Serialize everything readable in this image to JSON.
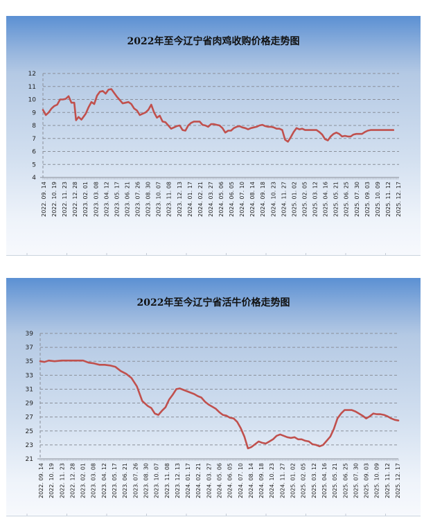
{
  "chart_data": [
    {
      "type": "line",
      "title": "2022年至今辽宁省肉鸡收购价格走势图",
      "xlabel": "",
      "ylabel": "",
      "ylim": [
        4,
        12
      ],
      "yticks": [
        4,
        5,
        6,
        7,
        8,
        9,
        10,
        11,
        12
      ],
      "grid": true,
      "legend": "none",
      "categories": [
        "2022.09.14",
        "2022.10.19",
        "2022.11.23",
        "2022.12.28",
        "2023.02.01",
        "2023.03.08",
        "2023.04.12",
        "2023.05.17",
        "2023.06.21",
        "2023.07.26",
        "2023.08.30",
        "2023.10.07",
        "2023.11.08",
        "2023.12.13",
        "2024.01.17",
        "2024.02.21",
        "2024.03.27",
        "2024.05.06",
        "2024.06.05",
        "2024.07.10",
        "2024.08.14",
        "2024.09.18",
        "2024.10.23",
        "2024.11.27",
        "2025.01.02",
        "2025.02.05",
        "2025.03.12",
        "2025.04.16",
        "2025.05.21",
        "2025.06.25",
        "2025.07.30",
        "2025.09.03",
        "2025.10.09",
        "2025.11.12",
        "2025.12.17"
      ],
      "series": [
        {
          "name": "肉鸡收购价格",
          "color": "#c0504d",
          "x_frac": [
            0,
            0.008,
            0.016,
            0.024,
            0.032,
            0.04,
            0.048,
            0.056,
            0.064,
            0.072,
            0.08,
            0.088,
            0.093,
            0.1,
            0.108,
            0.112,
            0.12,
            0.128,
            0.136,
            0.144,
            0.152,
            0.16,
            0.168,
            0.176,
            0.184,
            0.192,
            0.2,
            0.208,
            0.216,
            0.224,
            0.232,
            0.24,
            0.248,
            0.256,
            0.264,
            0.272,
            0.28,
            0.288,
            0.296,
            0.304,
            0.312,
            0.32,
            0.328,
            0.336,
            0.344,
            0.352,
            0.36,
            0.368,
            0.376,
            0.384,
            0.392,
            0.4,
            0.408,
            0.416,
            0.424,
            0.432,
            0.44,
            0.448,
            0.456,
            0.464,
            0.472,
            0.48,
            0.488,
            0.496,
            0.504,
            0.512,
            0.52,
            0.528,
            0.536,
            0.544,
            0.552,
            0.56,
            0.568,
            0.576,
            0.584,
            0.592,
            0.6,
            0.608,
            0.616,
            0.624,
            0.632,
            0.64,
            0.648,
            0.656,
            0.664,
            0.672,
            0.68,
            0.688,
            0.696,
            0.704,
            0.712,
            0.72,
            0.728,
            0.736,
            0.744,
            0.752,
            0.76,
            0.768,
            0.776,
            0.784,
            0.792,
            0.8,
            0.808,
            0.816,
            0.824,
            0.832,
            0.84,
            0.848,
            0.856,
            0.864,
            0.872,
            0.88,
            0.888,
            0.896,
            0.904,
            0.912,
            0.92,
            0.928,
            0.936,
            0.944,
            0.952,
            0.96,
            0.968,
            0.976,
            0.984,
            0.992,
            1.0
          ],
          "values": [
            9.2,
            8.8,
            9.0,
            9.3,
            9.5,
            9.6,
            10.0,
            10.0,
            10.05,
            10.25,
            9.75,
            9.75,
            8.4,
            8.65,
            8.45,
            8.6,
            8.9,
            9.4,
            9.8,
            9.65,
            10.3,
            10.6,
            10.65,
            10.45,
            10.75,
            10.8,
            10.5,
            10.2,
            9.95,
            9.7,
            9.75,
            9.8,
            9.65,
            9.3,
            9.15,
            8.8,
            8.9,
            9.0,
            9.2,
            9.6,
            9.0,
            8.6,
            8.75,
            8.3,
            8.25,
            8.0,
            7.75,
            7.85,
            7.95,
            8.0,
            7.65,
            7.6,
            8.0,
            8.2,
            8.3,
            8.3,
            8.3,
            8.05,
            8.0,
            7.9,
            8.1,
            8.1,
            8.05,
            8.0,
            7.8,
            7.45,
            7.6,
            7.6,
            7.8,
            7.9,
            7.95,
            7.85,
            7.8,
            7.7,
            7.8,
            7.85,
            7.9,
            8.0,
            8.05,
            7.95,
            7.9,
            7.9,
            7.85,
            7.75,
            7.75,
            7.65,
            6.9,
            6.75,
            7.1,
            7.5,
            7.8,
            7.7,
            7.75,
            7.65,
            7.65,
            7.65,
            7.65,
            7.65,
            7.5,
            7.3,
            6.95,
            6.85,
            7.15,
            7.35,
            7.45,
            7.35,
            7.15,
            7.2,
            7.15,
            7.15,
            7.3,
            7.35,
            7.35,
            7.35,
            7.5,
            7.6,
            7.65,
            7.65,
            7.65,
            7.65,
            7.65,
            7.65,
            7.65,
            7.65,
            7.65
          ]
        }
      ]
    },
    {
      "type": "line",
      "title": "2022年至今辽宁省活牛价格走势图",
      "xlabel": "",
      "ylabel": "",
      "ylim": [
        21,
        39
      ],
      "yticks": [
        21,
        23,
        25,
        27,
        29,
        31,
        33,
        35,
        37,
        39
      ],
      "grid": true,
      "legend": "none",
      "categories": [
        "2022.09.14",
        "2022.10.19",
        "2022.11.23",
        "2022.12.28",
        "2023.02.01",
        "2023.03.08",
        "2023.04.12",
        "2023.05.17",
        "2023.06.21",
        "2023.07.26",
        "2023.08.30",
        "2023.10.07",
        "2023.11.08",
        "2023.12.13",
        "2024.01.17",
        "2024.02.21",
        "2024.03.27",
        "2024.05.06",
        "2024.06.05",
        "2024.07.10",
        "2024.08.14",
        "2024.09.18",
        "2024.10.23",
        "2024.11.27",
        "2025.01.02",
        "2025.02.05",
        "2025.03.12",
        "2025.04.16",
        "2025.05.21",
        "2025.06.25",
        "2025.07.30",
        "2025.09.03",
        "2025.10.09",
        "2025.11.12",
        "2025.12.17"
      ],
      "series": [
        {
          "name": "活牛价格",
          "color": "#c0504d",
          "x_frac": [
            0,
            0.012,
            0.024,
            0.04,
            0.06,
            0.08,
            0.1,
            0.12,
            0.135,
            0.15,
            0.165,
            0.18,
            0.195,
            0.21,
            0.225,
            0.24,
            0.255,
            0.27,
            0.285,
            0.3,
            0.31,
            0.32,
            0.33,
            0.34,
            0.35,
            0.36,
            0.37,
            0.38,
            0.39,
            0.4,
            0.41,
            0.42,
            0.43,
            0.44,
            0.45,
            0.46,
            0.47,
            0.48,
            0.49,
            0.5,
            0.51,
            0.52,
            0.53,
            0.54,
            0.55,
            0.56,
            0.57,
            0.58,
            0.59,
            0.6,
            0.61,
            0.62,
            0.63,
            0.64,
            0.65,
            0.66,
            0.67,
            0.68,
            0.69,
            0.7,
            0.71,
            0.72,
            0.73,
            0.74,
            0.75,
            0.76,
            0.77,
            0.78,
            0.79,
            0.8,
            0.81,
            0.82,
            0.83,
            0.84,
            0.85,
            0.86,
            0.87,
            0.88,
            0.89,
            0.9,
            0.91,
            0.92,
            0.93,
            0.94,
            0.95,
            0.96,
            0.97,
            0.98,
            0.99,
            1.0
          ],
          "values": [
            35.0,
            34.9,
            35.1,
            35.0,
            35.1,
            35.1,
            35.1,
            35.1,
            34.8,
            34.7,
            34.5,
            34.5,
            34.4,
            34.2,
            33.6,
            33.2,
            32.6,
            31.4,
            29.3,
            28.6,
            28.3,
            27.5,
            27.3,
            27.9,
            28.4,
            29.5,
            30.2,
            31.0,
            31.1,
            30.9,
            30.7,
            30.5,
            30.3,
            30.0,
            29.8,
            29.2,
            28.8,
            28.5,
            28.2,
            27.7,
            27.3,
            27.2,
            26.9,
            26.8,
            26.3,
            25.4,
            24.2,
            22.5,
            22.7,
            23.1,
            23.5,
            23.3,
            23.2,
            23.5,
            23.8,
            24.3,
            24.5,
            24.3,
            24.1,
            24.0,
            24.1,
            23.8,
            23.8,
            23.6,
            23.5,
            23.1,
            23.0,
            22.8,
            23.0,
            23.6,
            24.2,
            25.3,
            26.8,
            27.5,
            28.0,
            28.0,
            28.0,
            27.8,
            27.5,
            27.2,
            26.8,
            27.1,
            27.5,
            27.4,
            27.4,
            27.3,
            27.1,
            26.8,
            26.6,
            26.5
          ]
        }
      ]
    }
  ]
}
